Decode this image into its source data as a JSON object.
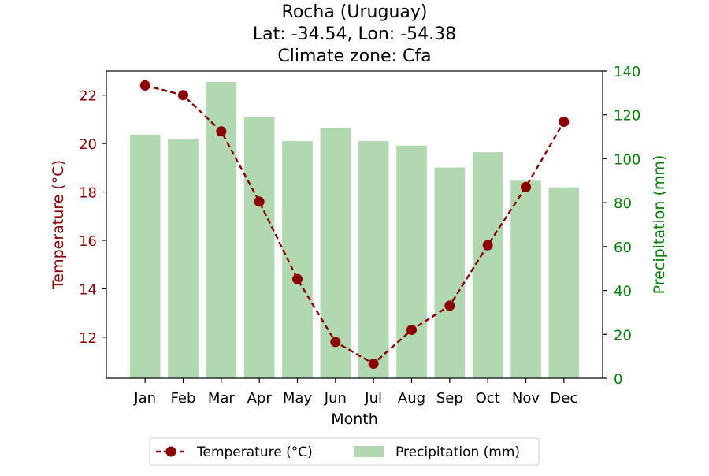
{
  "chart_data": {
    "type": "bar+line",
    "title_lines": [
      "Rocha (Uruguay)",
      "Lat: -34.54, Lon: -54.38",
      "Climate zone: Cfa"
    ],
    "categories": [
      "Jan",
      "Feb",
      "Mar",
      "Apr",
      "May",
      "Jun",
      "Jul",
      "Aug",
      "Sep",
      "Oct",
      "Nov",
      "Dec"
    ],
    "xlabel": "Month",
    "series": [
      {
        "name": "Temperature (°C)",
        "kind": "line",
        "axis": "left",
        "color": "#8b0000",
        "line_style": "dashed",
        "marker": "circle",
        "values": [
          22.4,
          22.0,
          20.5,
          17.6,
          14.4,
          11.8,
          10.9,
          12.3,
          13.3,
          15.8,
          18.2,
          20.9
        ]
      },
      {
        "name": "Precipitation (mm)",
        "kind": "bar",
        "axis": "right",
        "color": "#b2d8b2",
        "values": [
          111,
          109,
          135,
          119,
          108,
          114,
          108,
          106,
          96,
          103,
          90,
          87
        ]
      }
    ],
    "y_left": {
      "label": "Temperature (°C)",
      "color": "#8b0000",
      "ylim": [
        10.3,
        23.0
      ],
      "ticks": [
        12,
        14,
        16,
        18,
        20,
        22
      ]
    },
    "y_right": {
      "label": "Precipitation (mm)",
      "color": "#008000",
      "ylim": [
        0,
        140
      ],
      "ticks": [
        0,
        20,
        40,
        60,
        80,
        100,
        120,
        140
      ]
    },
    "grid": false,
    "legend": {
      "placement": "bottom-center",
      "entries": [
        "Temperature (°C)",
        "Precipitation (mm)"
      ]
    }
  }
}
